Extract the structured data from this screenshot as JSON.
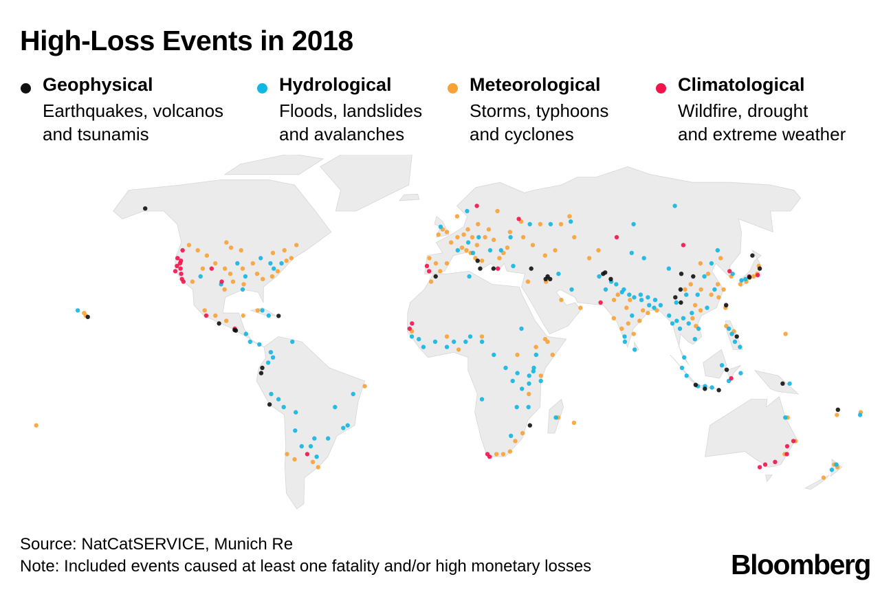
{
  "title": "High-Loss Events in 2018",
  "legend": [
    {
      "name": "Geophysical",
      "line1": "Earthquakes, volcanos",
      "line2": "and tsunamis",
      "color": "#111111"
    },
    {
      "name": "Hydrological",
      "line1": "Floods, landslides",
      "line2": "and avalanches",
      "color": "#12b6e2"
    },
    {
      "name": "Meteorological",
      "line1": "Storms, typhoons",
      "line2": "and cyclones",
      "color": "#f7a234"
    },
    {
      "name": "Climatological",
      "line1": "Wildfire, drought",
      "line2": "and extreme weather",
      "color": "#f2134b"
    }
  ],
  "footer": {
    "source": "Source: NatCatSERVICE, Munich Re",
    "note": "Note: Included events caused at least one fatality and/or high monetary losses",
    "logo": "Bloomberg"
  },
  "colors": {
    "land": "#ebebeb",
    "border": "#d6d6d6"
  },
  "events": {
    "geophysical": [
      [
        -150,
        61
      ],
      [
        -155,
        19.5
      ],
      [
        -98,
        17
      ],
      [
        -91,
        14.5
      ],
      [
        -90.5,
        14.3
      ],
      [
        -72.7,
        19.9
      ],
      [
        -79,
        -2
      ],
      [
        -78.5,
        0
      ],
      [
        -76,
        -14
      ],
      [
        15,
        38
      ],
      [
        14,
        41
      ],
      [
        21,
        38
      ],
      [
        38,
        38
      ],
      [
        46,
        34
      ],
      [
        45,
        35
      ],
      [
        44,
        34
      ],
      [
        70,
        36
      ],
      [
        71,
        36.5
      ],
      [
        73,
        34
      ],
      [
        102,
        25
      ],
      [
        100,
        27
      ],
      [
        103,
        30
      ],
      [
        110,
        35
      ],
      [
        105,
        36
      ],
      [
        121.5,
        24
      ],
      [
        140,
        43
      ],
      [
        135,
        34.7
      ],
      [
        141,
        38
      ],
      [
        116,
        -8.5
      ],
      [
        110,
        -8
      ],
      [
        119,
        -0.7
      ],
      [
        106,
        -6.5
      ],
      [
        143,
        -6
      ],
      [
        124,
        12
      ],
      [
        36,
        -22
      ],
      [
        168,
        -16
      ],
      [
        -5,
        35
      ]
    ],
    "hydrological": [
      [
        -95,
        40
      ],
      [
        -85,
        42
      ],
      [
        -80,
        40
      ],
      [
        -78,
        38
      ],
      [
        -75,
        40
      ],
      [
        -90,
        35
      ],
      [
        -90,
        30
      ],
      [
        -100,
        32
      ],
      [
        -110,
        35
      ],
      [
        -160,
        22
      ],
      [
        -80,
        22
      ],
      [
        -77,
        20
      ],
      [
        -86,
        13
      ],
      [
        -84,
        10
      ],
      [
        -80,
        9
      ],
      [
        -75,
        6
      ],
      [
        -74,
        4
      ],
      [
        -76,
        2
      ],
      [
        -66,
        10
      ],
      [
        -75,
        -10
      ],
      [
        -72,
        -12
      ],
      [
        -70,
        -15
      ],
      [
        -65,
        -17
      ],
      [
        -45,
        -23
      ],
      [
        -43,
        -22
      ],
      [
        -40,
        -10
      ],
      [
        -48,
        -15
      ],
      [
        -52,
        -27
      ],
      [
        -58,
        -27
      ],
      [
        -60,
        -30
      ],
      [
        -64,
        -30
      ],
      [
        -66,
        -24
      ],
      [
        -58,
        -34
      ],
      [
        10,
        48
      ],
      [
        15,
        50
      ],
      [
        20,
        45
      ],
      [
        25,
        45
      ],
      [
        30,
        50
      ],
      [
        5,
        45
      ],
      [
        12,
        44
      ],
      [
        -3,
        54
      ],
      [
        10,
        60
      ],
      [
        30,
        39
      ],
      [
        40,
        55
      ],
      [
        50,
        55
      ],
      [
        60,
        56
      ],
      [
        90,
        55
      ],
      [
        50,
        36
      ],
      [
        55,
        30
      ],
      [
        -5,
        10
      ],
      [
        -10,
        8
      ],
      [
        0,
        8
      ],
      [
        3,
        10
      ],
      [
        8,
        10
      ],
      [
        10,
        12
      ],
      [
        15,
        10
      ],
      [
        20,
        5
      ],
      [
        25,
        0
      ],
      [
        30,
        -2
      ],
      [
        35,
        -3
      ],
      [
        37,
        0
      ],
      [
        38,
        5
      ],
      [
        40,
        -5
      ],
      [
        32,
        -8
      ],
      [
        30,
        -15
      ],
      [
        -15,
        12
      ],
      [
        -12,
        11
      ],
      [
        32,
        15
      ],
      [
        36.8,
        -1.3
      ],
      [
        35,
        -6
      ],
      [
        28,
        -5
      ],
      [
        15,
        -12
      ],
      [
        28,
        -26
      ],
      [
        77,
        29
      ],
      [
        78,
        30
      ],
      [
        80,
        28
      ],
      [
        82,
        27
      ],
      [
        85,
        26
      ],
      [
        88,
        24
      ],
      [
        75,
        32
      ],
      [
        73,
        33
      ],
      [
        76,
        12
      ],
      [
        76,
        10
      ],
      [
        80,
        20
      ],
      [
        88,
        27
      ],
      [
        91,
        26
      ],
      [
        93,
        24
      ],
      [
        70,
        30
      ],
      [
        68,
        35
      ],
      [
        85,
        28
      ],
      [
        90,
        23
      ],
      [
        96,
        20
      ],
      [
        97,
        17
      ],
      [
        100,
        15
      ],
      [
        99,
        18
      ],
      [
        102,
        19
      ],
      [
        104,
        17
      ],
      [
        106,
        21
      ],
      [
        108,
        15
      ],
      [
        106,
        11
      ],
      [
        100,
        25
      ],
      [
        105,
        28
      ],
      [
        110,
        28
      ],
      [
        113,
        23
      ],
      [
        118,
        30
      ],
      [
        115,
        35
      ],
      [
        100,
        38
      ],
      [
        90,
        42
      ],
      [
        85,
        44
      ],
      [
        120,
        40
      ],
      [
        125,
        45
      ],
      [
        133,
        34
      ],
      [
        131,
        33.5
      ],
      [
        128,
        36
      ],
      [
        121,
        15
      ],
      [
        122,
        13
      ],
      [
        125,
        8
      ],
      [
        123,
        10
      ],
      [
        100,
        0
      ],
      [
        102,
        -3
      ],
      [
        107,
        -7
      ],
      [
        110,
        -7
      ],
      [
        113,
        -7.5
      ],
      [
        120,
        -5
      ],
      [
        125,
        -2
      ],
      [
        117,
        1
      ],
      [
        101,
        4
      ],
      [
        80,
        7
      ],
      [
        146,
        -6
      ],
      [
        146,
        -19
      ],
      [
        175,
        -37
      ],
      [
        174,
        -39
      ],
      [
        178,
        -18
      ],
      [
        114,
        62
      ],
      [
        47,
        -19
      ],
      [
        35,
        -15
      ],
      [
        10,
        35
      ]
    ],
    "meteorological": [
      [
        -120,
        47
      ],
      [
        -115,
        45
      ],
      [
        -110,
        43
      ],
      [
        -105,
        40
      ],
      [
        -100,
        38
      ],
      [
        -97,
        36
      ],
      [
        -95,
        33
      ],
      [
        -92,
        38
      ],
      [
        -88,
        40
      ],
      [
        -85,
        36
      ],
      [
        -82,
        34
      ],
      [
        -78,
        35
      ],
      [
        -76,
        37
      ],
      [
        -73,
        41
      ],
      [
        -71,
        42
      ],
      [
        -100,
        46
      ],
      [
        -95,
        45
      ],
      [
        -110,
        38
      ],
      [
        -113,
        33
      ],
      [
        -98,
        30
      ],
      [
        -90,
        32
      ],
      [
        -103,
        48
      ],
      [
        -75,
        45
      ],
      [
        -80,
        44
      ],
      [
        -70,
        47
      ],
      [
        -105,
        22
      ],
      [
        -100,
        20
      ],
      [
        -95,
        18
      ],
      [
        -88,
        20
      ],
      [
        -157,
        21
      ],
      [
        -82,
        22
      ],
      [
        -35,
        -7
      ],
      [
        -68,
        -35
      ],
      [
        -60,
        -36
      ],
      [
        -58,
        -38
      ],
      [
        -71,
        -33
      ],
      [
        -8,
        42
      ],
      [
        -5,
        40
      ],
      [
        -3,
        37
      ],
      [
        0,
        40
      ],
      [
        2,
        48
      ],
      [
        5,
        50
      ],
      [
        8,
        51
      ],
      [
        10,
        53
      ],
      [
        12,
        50
      ],
      [
        14,
        47
      ],
      [
        7,
        46
      ],
      [
        9,
        45
      ],
      [
        11,
        44
      ],
      [
        13,
        42
      ],
      [
        16,
        41
      ],
      [
        18,
        50
      ],
      [
        20,
        53
      ],
      [
        22,
        49
      ],
      [
        26,
        44
      ],
      [
        24,
        42
      ],
      [
        28,
        46
      ],
      [
        30,
        52
      ],
      [
        36,
        50
      ],
      [
        40,
        47
      ],
      [
        45,
        43
      ],
      [
        -4,
        51
      ],
      [
        0,
        52
      ],
      [
        -2,
        53
      ],
      [
        5,
        58
      ],
      [
        15,
        55
      ],
      [
        25,
        60
      ],
      [
        36,
        56
      ],
      [
        45,
        55
      ],
      [
        55,
        55
      ],
      [
        60,
        58
      ],
      [
        50,
        45
      ],
      [
        60,
        50
      ],
      [
        70,
        45
      ],
      [
        65,
        42
      ],
      [
        -7,
        33
      ],
      [
        -15,
        14
      ],
      [
        0,
        12
      ],
      [
        5,
        7
      ],
      [
        15,
        12
      ],
      [
        30,
        5
      ],
      [
        38,
        8
      ],
      [
        43,
        10
      ],
      [
        45,
        5
      ],
      [
        40,
        -3
      ],
      [
        35,
        -10
      ],
      [
        33,
        -25
      ],
      [
        30,
        -28
      ],
      [
        28,
        -32
      ],
      [
        25,
        -33
      ],
      [
        22,
        -33
      ],
      [
        48,
        -19
      ],
      [
        55,
        -21
      ],
      [
        42,
        11
      ],
      [
        36,
        33
      ],
      [
        44,
        33
      ],
      [
        50,
        26
      ],
      [
        58,
        23
      ],
      [
        72,
        19
      ],
      [
        75,
        15
      ],
      [
        78,
        17
      ],
      [
        80,
        13
      ],
      [
        83,
        18
      ],
      [
        85,
        22
      ],
      [
        87,
        21
      ],
      [
        80,
        26
      ],
      [
        75,
        28
      ],
      [
        78,
        23
      ],
      [
        73,
        26
      ],
      [
        91,
        22
      ],
      [
        108,
        32
      ],
      [
        112,
        30
      ],
      [
        116,
        28
      ],
      [
        119,
        27
      ],
      [
        120,
        32
      ],
      [
        122,
        30
      ],
      [
        115,
        40
      ],
      [
        117,
        36
      ],
      [
        125,
        42
      ],
      [
        110,
        22
      ],
      [
        105,
        30
      ],
      [
        108,
        24
      ],
      [
        127,
        35
      ],
      [
        130,
        32
      ],
      [
        133,
        33
      ],
      [
        135,
        34.5
      ],
      [
        137,
        35
      ],
      [
        139,
        36
      ],
      [
        141,
        39
      ],
      [
        121,
        23
      ],
      [
        120,
        16
      ],
      [
        123,
        14
      ],
      [
        107,
        16
      ],
      [
        106,
        19
      ],
      [
        145,
        13
      ],
      [
        -178,
        -22
      ],
      [
        147,
        -19
      ],
      [
        153,
        -28
      ],
      [
        150,
        -33
      ],
      [
        174,
        -37
      ],
      [
        176,
        -38
      ],
      [
        172,
        -42
      ],
      [
        168,
        -18
      ],
      [
        178,
        -17
      ],
      [
        -156,
        20
      ]
    ],
    "climatological": [
      [
        -122,
        39
      ],
      [
        -121,
        40
      ],
      [
        -120,
        38
      ],
      [
        -119,
        36
      ],
      [
        -118,
        34
      ],
      [
        -117,
        33
      ],
      [
        -122,
        37
      ],
      [
        -121,
        41
      ],
      [
        -123,
        42
      ],
      [
        -122,
        45
      ],
      [
        -106,
        38
      ],
      [
        -100,
        33
      ],
      [
        -104,
        20
      ],
      [
        -91,
        15
      ],
      [
        -16,
        15
      ],
      [
        -15,
        17
      ],
      [
        -9,
        39
      ],
      [
        -8,
        37
      ],
      [
        23,
        38
      ],
      [
        15,
        62
      ],
      [
        35,
        57
      ],
      [
        80,
        50
      ],
      [
        110,
        47
      ],
      [
        139,
        35.5
      ],
      [
        135,
        35
      ],
      [
        67,
        25
      ],
      [
        127,
        37
      ],
      [
        121,
        -4
      ],
      [
        19,
        -34
      ],
      [
        18,
        -33
      ],
      [
        151,
        -33
      ],
      [
        150,
        -30
      ],
      [
        152,
        -28
      ],
      [
        147,
        -36
      ],
      [
        143,
        -37
      ],
      [
        141,
        -38
      ],
      [
        -62,
        -33
      ]
    ]
  }
}
